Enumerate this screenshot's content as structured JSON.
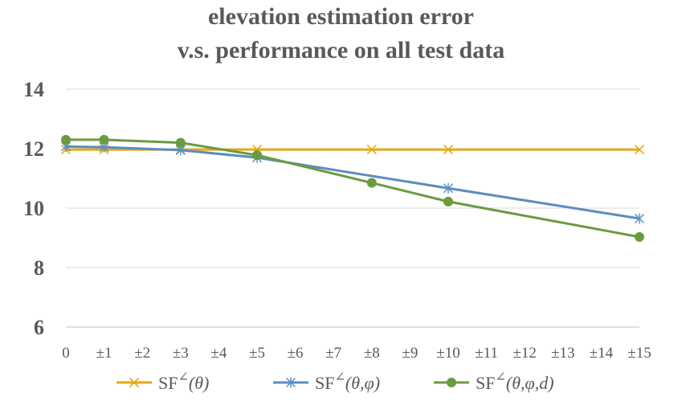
{
  "chart_data": {
    "type": "line",
    "title": "elevation estimation error",
    "subtitle": "v.s. performance on all test data",
    "xlabel": "",
    "ylabel": "",
    "categories": [
      "0",
      "±1",
      "±2",
      "±3",
      "±4",
      "±5",
      "±6",
      "±7",
      "±8",
      "±9",
      "±10",
      "±11",
      "±12",
      "±13",
      "±14",
      "±15"
    ],
    "yticks": [
      "6",
      "8",
      "10",
      "12",
      "14"
    ],
    "ylim": [
      6,
      14
    ],
    "grid": "horizontal",
    "legend_position": "bottom",
    "series": [
      {
        "name": "SF∠(θ)",
        "legend_base": "SF",
        "legend_sup": "∠",
        "legend_args": "(θ)",
        "color": "#E6A817",
        "marker": "x",
        "points": [
          [
            0,
            11.97
          ],
          [
            1,
            11.97
          ],
          [
            3,
            11.97
          ],
          [
            5,
            11.97
          ],
          [
            8,
            11.97
          ],
          [
            10,
            11.97
          ],
          [
            15,
            11.97
          ]
        ]
      },
      {
        "name": "SF∠(θ,φ)",
        "legend_base": "SF",
        "legend_sup": "∠",
        "legend_args": "(θ,φ)",
        "color": "#5B8DBE",
        "marker": "asterisk",
        "points": [
          [
            0,
            12.07
          ],
          [
            1,
            12.05
          ],
          [
            3,
            11.95
          ],
          [
            5,
            11.7
          ],
          [
            10,
            10.67
          ],
          [
            15,
            9.65
          ]
        ]
      },
      {
        "name": "SF∠(θ,φ,d)",
        "legend_base": "SF",
        "legend_sup": "∠",
        "legend_args": "(θ,φ,d)",
        "color": "#6A9B3F",
        "marker": "circle",
        "points": [
          [
            0,
            12.3
          ],
          [
            1,
            12.3
          ],
          [
            3,
            12.2
          ],
          [
            5,
            11.78
          ],
          [
            8,
            10.85
          ],
          [
            10,
            10.22
          ],
          [
            15,
            9.03
          ]
        ]
      }
    ]
  }
}
